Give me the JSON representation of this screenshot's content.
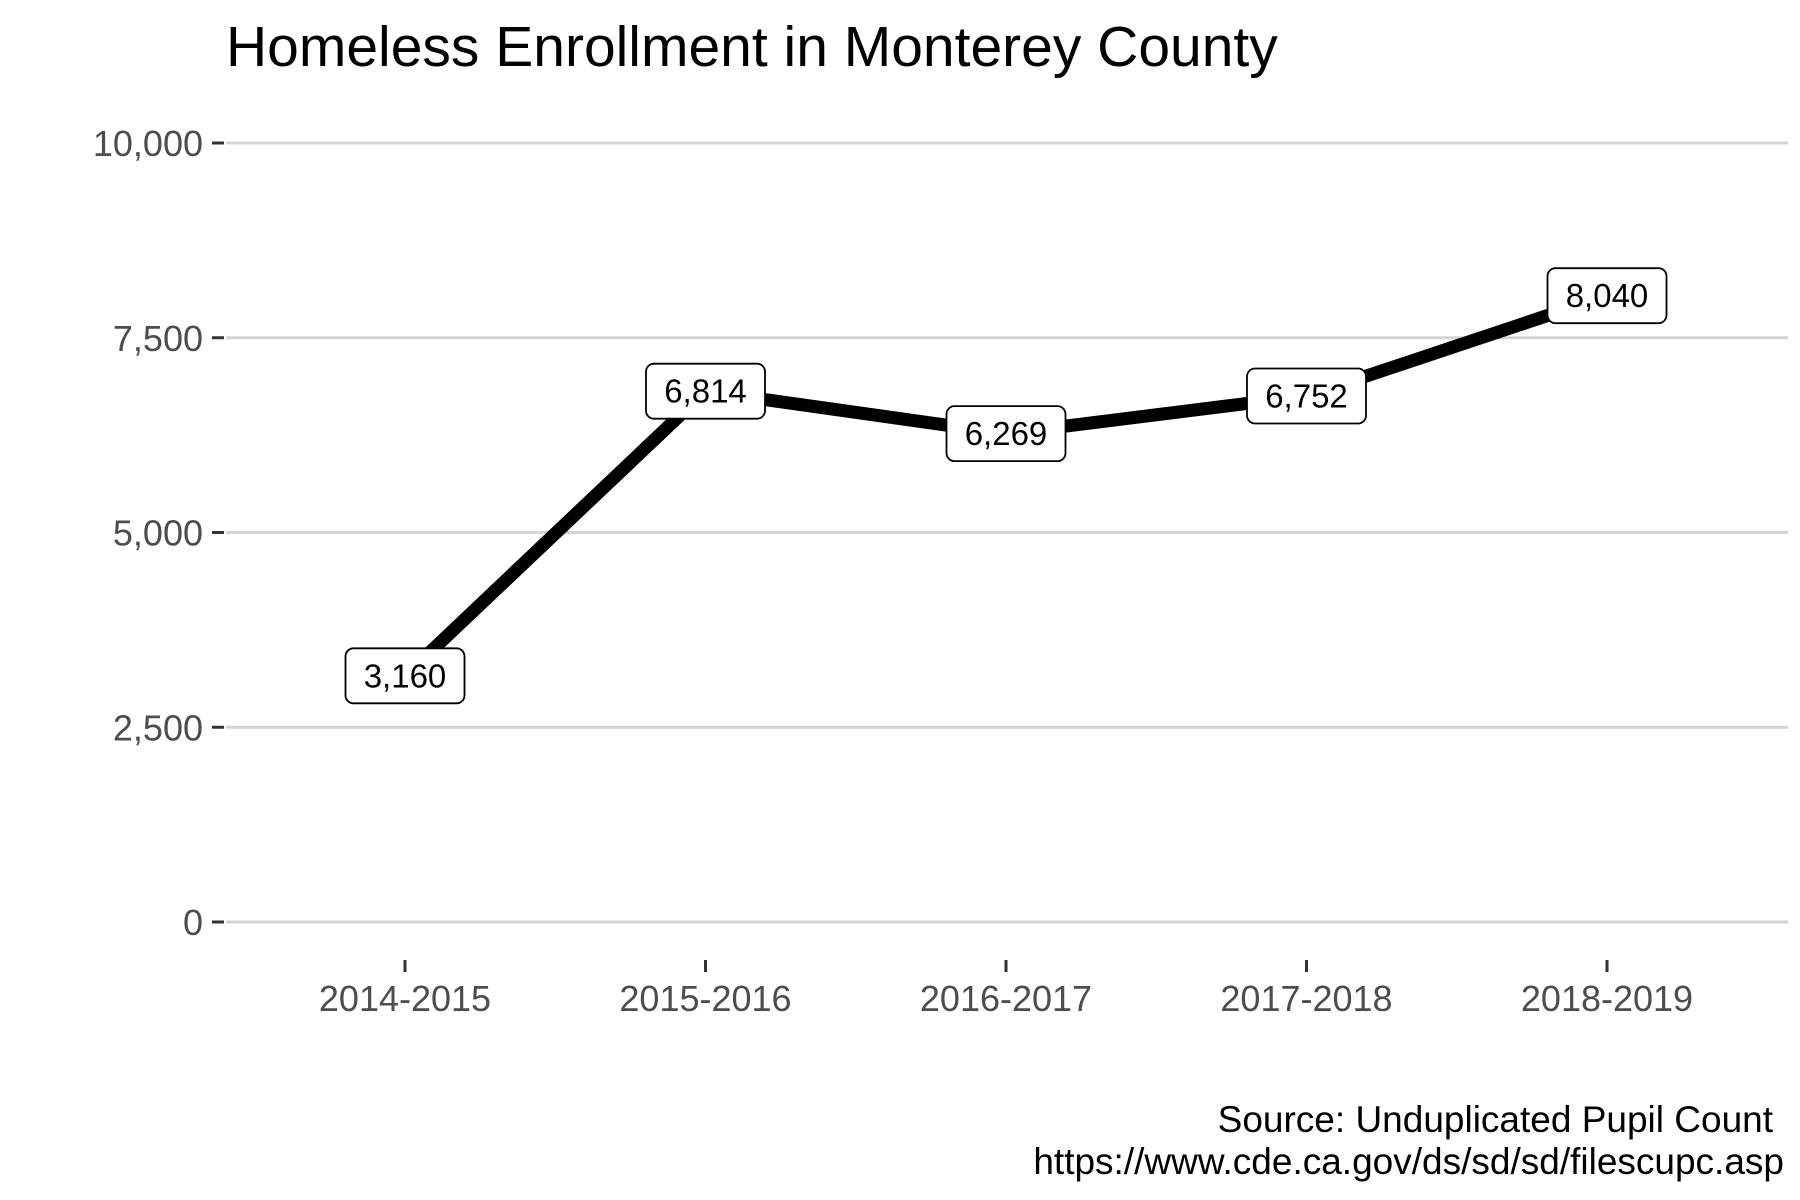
{
  "chart_data": {
    "type": "line",
    "title": "Homeless Enrollment in Monterey County",
    "xlabel": "",
    "ylabel": "",
    "categories": [
      "2014-2015",
      "2015-2016",
      "2016-2017",
      "2017-2018",
      "2018-2019"
    ],
    "values": [
      3160,
      6814,
      6269,
      6752,
      8040
    ],
    "data_labels": [
      "3,160",
      "6,814",
      "6,269",
      "6,752",
      "8,040"
    ],
    "ylim": [
      0,
      10000
    ],
    "yticks": [
      0,
      2500,
      5000,
      7500,
      10000
    ],
    "ytick_labels": [
      "0",
      "2,500",
      "5,000",
      "7,500",
      "10,000"
    ],
    "grid": "horizontal major",
    "legend": "none",
    "line_color": "#000000",
    "grid_color": "#d4d4d4",
    "caption": [
      "Source: Unduplicated Pupil Count",
      "https://www.cde.ca.gov/ds/sd/sd/filescupc.asp"
    ]
  }
}
